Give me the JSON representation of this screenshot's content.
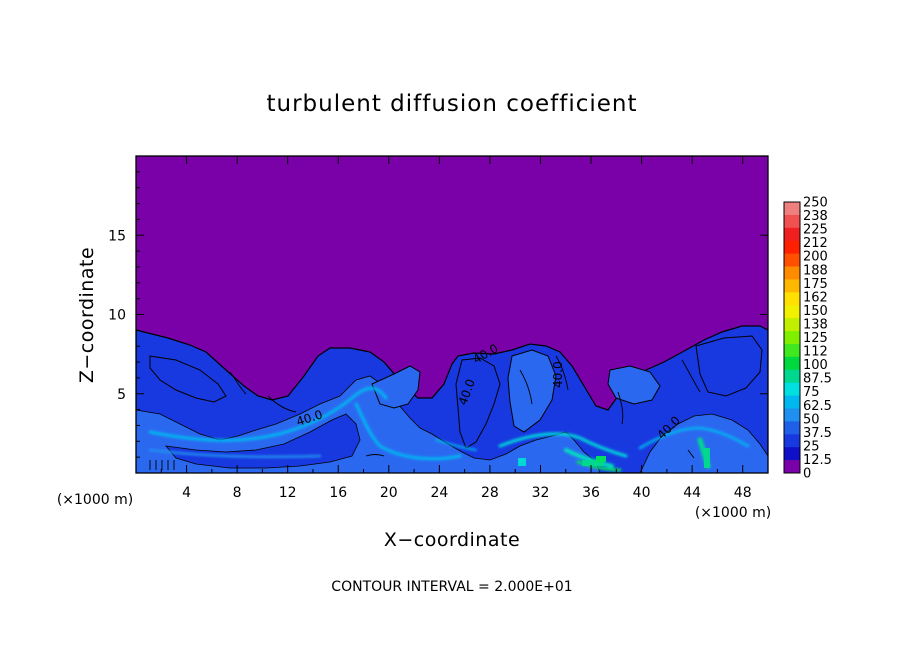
{
  "chart_data": {
    "type": "heatmap",
    "title": "turbulent diffusion coefficient",
    "xlabel": "X−coordinate",
    "ylabel": "Z−coordinate",
    "x_unit_note": "(×1000 m)",
    "y_unit_note": "(×1000 m)",
    "xlim": [
      0,
      50
    ],
    "ylim": [
      0,
      20
    ],
    "x_ticks": [
      4,
      8,
      12,
      16,
      20,
      24,
      28,
      32,
      36,
      40,
      44,
      48
    ],
    "y_ticks": [
      5,
      10,
      15
    ],
    "colorbar": {
      "labels": [
        "250",
        "238",
        "225",
        "212",
        "200",
        "188",
        "175",
        "162",
        "150",
        "138",
        "125",
        "112",
        "100",
        "87.5",
        "75",
        "62.5",
        "50",
        "37.5",
        "25",
        "12.5",
        "0"
      ],
      "colors": [
        "#f08080",
        "#f05050",
        "#f02020",
        "#ff2000",
        "#ff5000",
        "#ff8c00",
        "#ffb800",
        "#ffe000",
        "#f0f000",
        "#c0f000",
        "#80f000",
        "#40e820",
        "#00d840",
        "#00d890",
        "#00e0e0",
        "#00b8f0",
        "#2090f0",
        "#2060e8",
        "#1838e0",
        "#1010c8",
        "#7a00a8"
      ],
      "range": [
        0,
        250
      ]
    },
    "contour_labels": [
      "40.0",
      "40.0",
      "40.0",
      "40.0",
      "40.0"
    ],
    "contour_interval": "CONTOUR INTERVAL = 2.000E+01",
    "background_value": 0,
    "turbulent_layer_top_approx": 8,
    "max_value_approx": 100
  }
}
